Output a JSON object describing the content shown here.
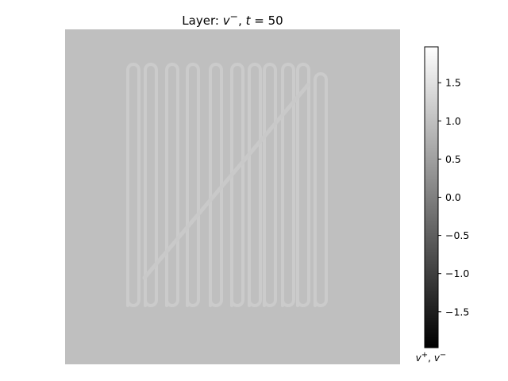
{
  "title_prefix": "Layer: ",
  "title_var": "v",
  "title_sup": "−",
  "title_sep": ", ",
  "title_t": "t",
  "title_eq": " = 50",
  "colorbar": {
    "label_a": "v",
    "label_a_sup": "+",
    "label_sep": ", ",
    "label_b": "v",
    "label_b_sup": "−",
    "ticks": [
      1.5,
      1.0,
      0.5,
      0.0,
      -0.5,
      -1.0,
      -1.5
    ],
    "tick_labels": [
      "1.5",
      "1.0",
      "0.5",
      "0.0",
      "−0.5",
      "−1.0",
      "−1.5"
    ],
    "range": [
      -1.97,
      1.97
    ],
    "color_low": "#000000",
    "color_high": "#ffffff"
  },
  "chart_data": {
    "type": "heatmap",
    "title": "Layer: v⁻, t = 50",
    "colormap": "gray",
    "value_range": [
      -1.97,
      1.97
    ],
    "background_value": 0.0,
    "feature_value": 0.15,
    "feature": "serpentine track of vertical loops with a diagonal stroke across it"
  }
}
